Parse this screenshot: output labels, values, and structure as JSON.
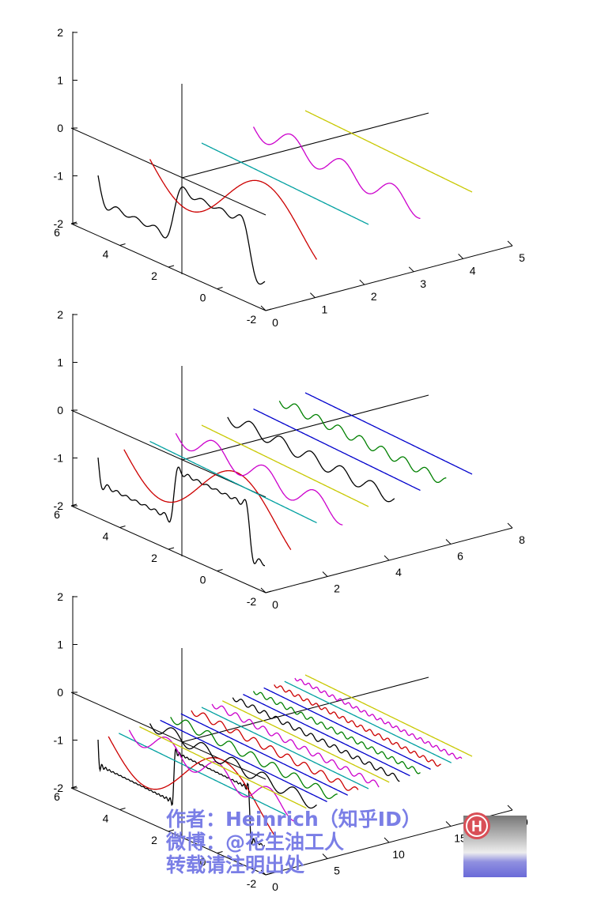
{
  "colors": {
    "axis": "#000000",
    "series": [
      "#0000cc",
      "#cc0000",
      "#00a0a0",
      "#cc00cc",
      "#c8c800",
      "#000000",
      "#0000cc",
      "#008000"
    ],
    "watermark": "#7a7ee6"
  },
  "chart_data": [
    {
      "type": "line",
      "view": "3d-waterfall",
      "description_terms": 5,
      "x_ticks": [
        "0",
        "1",
        "2",
        "3",
        "4",
        "5"
      ],
      "y_ticks": [
        "-2",
        "0",
        "2",
        "4",
        "6"
      ],
      "z_ticks": [
        "-2",
        "-1",
        "0",
        "1",
        "2"
      ],
      "xlim": [
        0,
        5
      ],
      "ylim": [
        -2,
        6
      ],
      "zlim": [
        -2,
        2
      ],
      "harmonics": 4
    },
    {
      "type": "line",
      "view": "3d-waterfall",
      "x_ticks": [
        "0",
        "2",
        "4",
        "6",
        "8"
      ],
      "y_ticks": [
        "-2",
        "0",
        "2",
        "4",
        "6"
      ],
      "z_ticks": [
        "-2",
        "-1",
        "0",
        "1",
        "2"
      ],
      "xlim": [
        0,
        8
      ],
      "ylim": [
        -2,
        6
      ],
      "zlim": [
        -2,
        2
      ],
      "harmonics": 8
    },
    {
      "type": "line",
      "view": "3d-waterfall",
      "x_ticks": [
        "0",
        "5",
        "10",
        "15",
        "20"
      ],
      "y_ticks": [
        "-2",
        "0",
        "2",
        "4",
        "6"
      ],
      "z_ticks": [
        "-2",
        "-1",
        "0",
        "1",
        "2"
      ],
      "xlim": [
        0,
        20
      ],
      "ylim": [
        -2,
        6
      ],
      "zlim": [
        -2,
        2
      ],
      "harmonics": 20
    }
  ],
  "watermark": {
    "line1": "作者：Heinrich（知乎ID）",
    "line2": "微博：@花生油工人",
    "line3": "转载请注明出处",
    "logo_letter": "H"
  }
}
